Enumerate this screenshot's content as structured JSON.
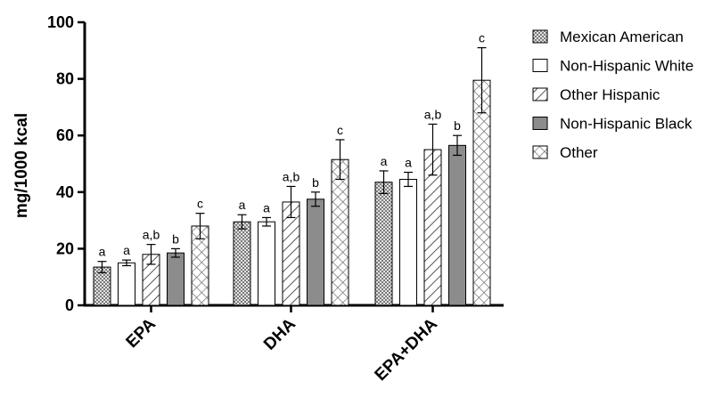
{
  "chart_data": {
    "type": "bar",
    "title": "",
    "xlabel": "",
    "ylabel": "mg/1000 kcal",
    "ylim": [
      0,
      100
    ],
    "yticks": [
      "0",
      "20",
      "40",
      "60",
      "80",
      "100"
    ],
    "grid": false,
    "legend_position": "right",
    "categories": [
      "EPA",
      "DHA",
      "EPA+DHA"
    ],
    "series": [
      {
        "name": "Mexican American",
        "pattern": "dots",
        "values": [
          13.5,
          29.5,
          43.5
        ],
        "errors": [
          2.0,
          2.5,
          4.0
        ],
        "labels": [
          "a",
          "a",
          "a"
        ]
      },
      {
        "name": "Non-Hispanic White",
        "pattern": "white",
        "values": [
          15.0,
          29.5,
          44.5
        ],
        "errors": [
          1.0,
          1.5,
          2.5
        ],
        "labels": [
          "a",
          "a",
          "a"
        ]
      },
      {
        "name": "Other Hispanic",
        "pattern": "diagonal",
        "values": [
          18.0,
          36.5,
          55.0
        ],
        "errors": [
          3.5,
          5.5,
          9.0
        ],
        "labels": [
          "a,b",
          "a,b",
          "a,b"
        ]
      },
      {
        "name": "Non-Hispanic Black",
        "pattern": "gray",
        "values": [
          18.5,
          37.5,
          56.5
        ],
        "errors": [
          1.5,
          2.5,
          3.5
        ],
        "labels": [
          "b",
          "b",
          "b"
        ]
      },
      {
        "name": "Other",
        "pattern": "crosshatch",
        "values": [
          28.0,
          51.5,
          79.5
        ],
        "errors": [
          4.5,
          7.0,
          11.5
        ],
        "labels": [
          "c",
          "c",
          "c"
        ]
      }
    ]
  }
}
